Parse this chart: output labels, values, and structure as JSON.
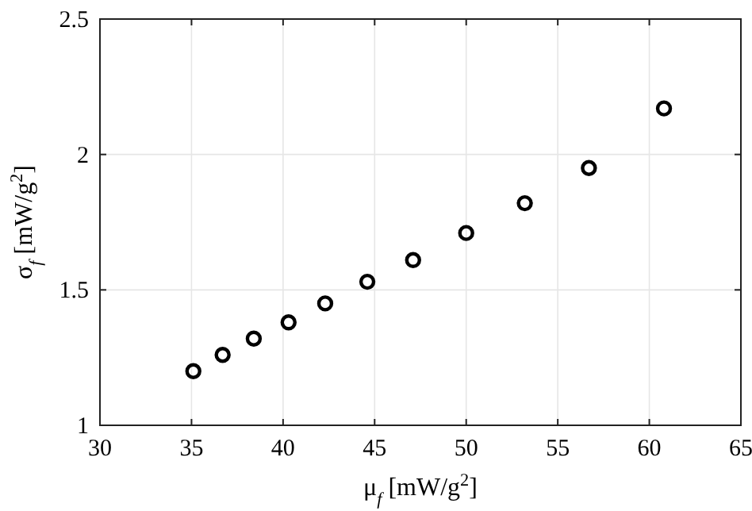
{
  "chart_data": {
    "type": "scatter",
    "xlabel": "μ$_{f}$ [mW/g$^{2}$]",
    "ylabel": "σ$_{f}$ [mW/g$^{2}$]",
    "x": [
      35.1,
      36.7,
      38.4,
      40.3,
      42.3,
      44.6,
      47.1,
      50.0,
      53.2,
      56.7,
      60.8
    ],
    "series": [
      {
        "color": "#000000",
        "values": [
          1.2,
          1.26,
          1.32,
          1.38,
          1.45,
          1.53,
          1.61,
          1.71,
          1.82,
          1.95,
          2.17
        ]
      }
    ],
    "xlim": [
      30,
      65
    ],
    "xticks": [
      30,
      35,
      40,
      45,
      50,
      55,
      60,
      65
    ],
    "ylim": [
      1,
      2.5
    ],
    "yticks": [
      1,
      {
        "value": 1.5,
        "label": "1.5"
      },
      2,
      {
        "value": 2.5,
        "label": "2.5"
      }
    ],
    "grid": true,
    "marker": "circle"
  }
}
